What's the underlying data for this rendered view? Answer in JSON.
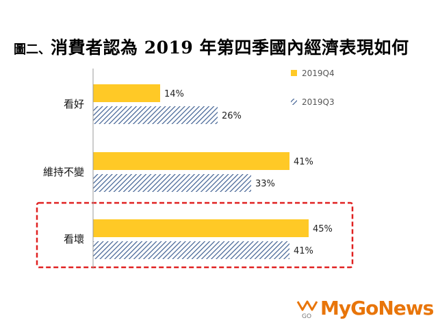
{
  "header": {
    "prefix": "圖二、",
    "title": "消費者認為 2019 年第四季國內經濟表現如何"
  },
  "chart_data": {
    "type": "bar",
    "orientation": "horizontal",
    "categories": [
      "看好",
      "維持不變",
      "看壞"
    ],
    "series": [
      {
        "name": "2019Q4",
        "values": [
          14,
          41,
          45
        ],
        "color": "#FFC926",
        "pattern": "solid"
      },
      {
        "name": "2019Q3",
        "values": [
          26,
          33,
          41
        ],
        "color": "#3D5E91",
        "pattern": "diagonal-stripes"
      }
    ],
    "value_suffix": "%",
    "xlim": [
      0,
      60
    ],
    "legend_position": "top-right",
    "grid": false,
    "highlighted_category": "看壞",
    "highlight_color": "#E02020"
  },
  "watermark": {
    "brand": "MyGoNews",
    "logo_text": "GO",
    "brand_color": "#E8750A"
  }
}
